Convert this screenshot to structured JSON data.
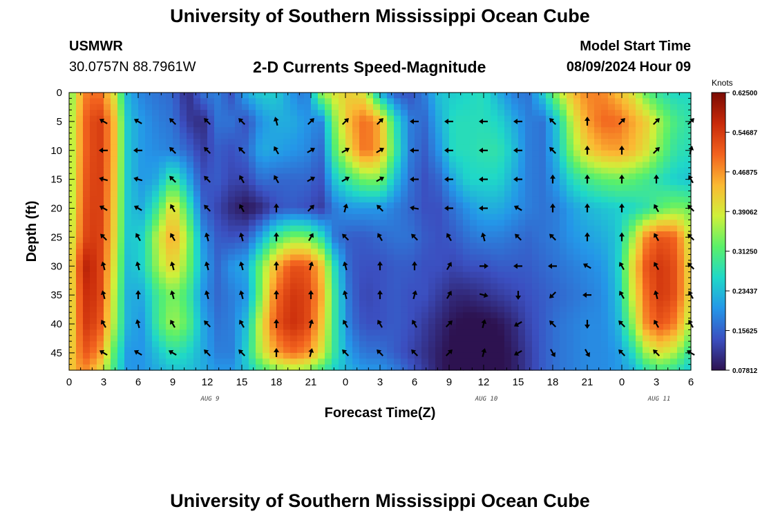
{
  "header": {
    "title": "University of Southern Mississippi Ocean Cube",
    "station": "USMWR",
    "coords": "30.0757N  88.7961W",
    "subtitle": "2-D Currents Speed-Magnitude",
    "model_start_label": "Model Start Time",
    "model_start_value": "08/09/2024 Hour 09"
  },
  "footer": {
    "title": "University of Southern Mississippi Ocean Cube"
  },
  "colors": {
    "scale": [
      "#2d1250",
      "#3b4fc0",
      "#2496e8",
      "#1fd8c8",
      "#5af06a",
      "#cff03a",
      "#fbb933",
      "#f2621e",
      "#c82a0a",
      "#7a0b03"
    ]
  },
  "chart_data": {
    "type": "heatmap",
    "title": "2-D Currents Speed-Magnitude",
    "xlabel": "Forecast Time(Z)",
    "ylabel": "Depth (ft)",
    "x_hours": [
      0,
      3,
      6,
      9,
      12,
      15,
      18,
      21,
      24,
      27,
      30,
      33,
      36,
      39,
      42,
      45,
      48,
      51,
      54
    ],
    "x_tick_labels": [
      "0",
      "3",
      "6",
      "9",
      "12",
      "15",
      "18",
      "21",
      "0",
      "3",
      "6",
      "9",
      "12",
      "15",
      "18",
      "21",
      "0",
      "3",
      "6"
    ],
    "y_ticks": [
      0,
      5,
      10,
      15,
      20,
      25,
      30,
      35,
      40,
      45
    ],
    "y_tick_labels": [
      "0",
      "5",
      "10",
      "15",
      "20",
      "25",
      "30",
      "35",
      "40",
      "45"
    ],
    "xlim": [
      0,
      54
    ],
    "ylim": [
      0,
      48
    ],
    "day_labels": [
      {
        "hour": 12,
        "text": "AUG 9"
      },
      {
        "hour": 36,
        "text": "AUG 10"
      },
      {
        "hour": 51,
        "text": "AUG 11"
      }
    ],
    "colorbar": {
      "title": "Knots",
      "range": [
        0.078125,
        0.625
      ],
      "tick_values": [
        0.625,
        0.546875,
        0.46875,
        0.390625,
        0.3125,
        0.234375,
        0.15625,
        0.078125
      ],
      "tick_labels": [
        "0.62500",
        "0.54687",
        "0.46875",
        "0.39062",
        "0.31250",
        "0.23437",
        "0.15625",
        "0.07812"
      ]
    },
    "speed_depths": [
      0,
      5,
      10,
      15,
      20,
      25,
      30,
      35,
      40,
      45,
      48
    ],
    "speed_grid": [
      [
        0.32,
        0.48,
        0.5,
        0.4,
        0.22,
        0.18,
        0.17,
        0.16,
        0.1,
        0.17,
        0.18,
        0.14,
        0.22,
        0.25,
        0.25,
        0.2,
        0.17,
        0.35,
        0.4,
        0.42,
        0.39,
        0.22,
        0.15,
        0.14,
        0.18,
        0.24,
        0.25,
        0.26,
        0.27,
        0.22,
        0.18,
        0.17,
        0.25,
        0.36,
        0.44,
        0.48,
        0.48,
        0.44,
        0.4,
        0.32,
        0.28,
        0.26,
        0.26
      ],
      [
        0.34,
        0.5,
        0.55,
        0.45,
        0.24,
        0.2,
        0.18,
        0.17,
        0.12,
        0.1,
        0.17,
        0.17,
        0.14,
        0.2,
        0.22,
        0.22,
        0.2,
        0.18,
        0.35,
        0.45,
        0.5,
        0.45,
        0.28,
        0.18,
        0.16,
        0.22,
        0.27,
        0.27,
        0.27,
        0.26,
        0.22,
        0.18,
        0.17,
        0.25,
        0.38,
        0.46,
        0.5,
        0.5,
        0.46,
        0.42,
        0.35,
        0.3,
        0.28
      ],
      [
        0.34,
        0.5,
        0.55,
        0.45,
        0.24,
        0.2,
        0.19,
        0.18,
        0.16,
        0.12,
        0.15,
        0.14,
        0.16,
        0.22,
        0.21,
        0.2,
        0.19,
        0.16,
        0.32,
        0.42,
        0.5,
        0.45,
        0.3,
        0.18,
        0.15,
        0.2,
        0.27,
        0.27,
        0.28,
        0.28,
        0.24,
        0.18,
        0.17,
        0.24,
        0.35,
        0.42,
        0.45,
        0.46,
        0.44,
        0.4,
        0.33,
        0.28,
        0.27
      ],
      [
        0.34,
        0.51,
        0.55,
        0.44,
        0.24,
        0.2,
        0.22,
        0.3,
        0.22,
        0.14,
        0.15,
        0.13,
        0.13,
        0.17,
        0.16,
        0.16,
        0.16,
        0.14,
        0.25,
        0.3,
        0.34,
        0.34,
        0.24,
        0.17,
        0.14,
        0.16,
        0.22,
        0.26,
        0.26,
        0.26,
        0.22,
        0.18,
        0.17,
        0.21,
        0.27,
        0.3,
        0.32,
        0.33,
        0.32,
        0.3,
        0.27,
        0.25,
        0.24
      ],
      [
        0.34,
        0.52,
        0.55,
        0.43,
        0.24,
        0.22,
        0.3,
        0.42,
        0.3,
        0.16,
        0.13,
        0.1,
        0.08,
        0.1,
        0.14,
        0.15,
        0.14,
        0.12,
        0.18,
        0.2,
        0.2,
        0.2,
        0.18,
        0.16,
        0.14,
        0.14,
        0.17,
        0.2,
        0.22,
        0.22,
        0.2,
        0.18,
        0.17,
        0.18,
        0.21,
        0.23,
        0.24,
        0.25,
        0.26,
        0.28,
        0.32,
        0.34,
        0.33
      ],
      [
        0.36,
        0.53,
        0.55,
        0.42,
        0.24,
        0.26,
        0.38,
        0.46,
        0.36,
        0.2,
        0.15,
        0.14,
        0.15,
        0.22,
        0.3,
        0.34,
        0.34,
        0.28,
        0.17,
        0.15,
        0.15,
        0.16,
        0.17,
        0.17,
        0.15,
        0.14,
        0.15,
        0.17,
        0.18,
        0.18,
        0.17,
        0.16,
        0.17,
        0.18,
        0.2,
        0.21,
        0.22,
        0.24,
        0.35,
        0.48,
        0.52,
        0.5,
        0.38
      ],
      [
        0.38,
        0.58,
        0.55,
        0.4,
        0.23,
        0.26,
        0.36,
        0.42,
        0.34,
        0.22,
        0.16,
        0.2,
        0.22,
        0.34,
        0.45,
        0.52,
        0.52,
        0.44,
        0.26,
        0.15,
        0.14,
        0.14,
        0.15,
        0.15,
        0.14,
        0.14,
        0.13,
        0.14,
        0.14,
        0.15,
        0.15,
        0.15,
        0.16,
        0.17,
        0.18,
        0.19,
        0.2,
        0.24,
        0.4,
        0.52,
        0.55,
        0.52,
        0.4
      ],
      [
        0.38,
        0.56,
        0.55,
        0.38,
        0.22,
        0.22,
        0.3,
        0.34,
        0.3,
        0.2,
        0.16,
        0.18,
        0.2,
        0.35,
        0.5,
        0.55,
        0.54,
        0.46,
        0.28,
        0.16,
        0.13,
        0.14,
        0.15,
        0.14,
        0.14,
        0.12,
        0.1,
        0.1,
        0.11,
        0.12,
        0.13,
        0.14,
        0.15,
        0.16,
        0.17,
        0.18,
        0.19,
        0.23,
        0.38,
        0.5,
        0.55,
        0.52,
        0.4
      ],
      [
        0.38,
        0.55,
        0.53,
        0.37,
        0.22,
        0.2,
        0.3,
        0.36,
        0.32,
        0.22,
        0.17,
        0.18,
        0.24,
        0.4,
        0.52,
        0.56,
        0.54,
        0.44,
        0.28,
        0.17,
        0.14,
        0.14,
        0.15,
        0.14,
        0.12,
        0.1,
        0.08,
        0.07,
        0.07,
        0.08,
        0.1,
        0.13,
        0.15,
        0.17,
        0.18,
        0.19,
        0.19,
        0.22,
        0.34,
        0.48,
        0.52,
        0.48,
        0.36
      ],
      [
        0.4,
        0.52,
        0.48,
        0.32,
        0.2,
        0.2,
        0.24,
        0.28,
        0.26,
        0.22,
        0.18,
        0.18,
        0.26,
        0.38,
        0.46,
        0.5,
        0.48,
        0.4,
        0.28,
        0.2,
        0.17,
        0.17,
        0.15,
        0.13,
        0.11,
        0.09,
        0.07,
        0.06,
        0.06,
        0.07,
        0.09,
        0.12,
        0.15,
        0.17,
        0.18,
        0.19,
        0.19,
        0.2,
        0.26,
        0.36,
        0.4,
        0.36,
        0.28
      ],
      [
        0.42,
        0.48,
        0.42,
        0.3,
        0.2,
        0.2,
        0.22,
        0.24,
        0.24,
        0.22,
        0.2,
        0.2,
        0.24,
        0.3,
        0.34,
        0.36,
        0.35,
        0.3,
        0.25,
        0.22,
        0.2,
        0.2,
        0.18,
        0.15,
        0.12,
        0.09,
        0.07,
        0.06,
        0.06,
        0.07,
        0.09,
        0.12,
        0.15,
        0.17,
        0.18,
        0.19,
        0.19,
        0.2,
        0.22,
        0.28,
        0.3,
        0.28,
        0.24
      ]
    ],
    "vectors": {
      "hours": [
        3,
        6,
        9,
        12,
        15,
        18,
        21,
        24,
        27,
        30,
        33,
        36,
        39,
        42,
        45,
        48,
        51,
        54
      ],
      "depths": [
        5,
        10,
        15,
        20,
        25,
        30,
        35,
        40,
        45
      ],
      "direction_deg": [
        [
          300,
          300,
          315,
          315,
          315,
          345,
          45,
          45,
          45,
          270,
          270,
          270,
          270,
          315,
          0,
          45,
          45,
          45
        ],
        [
          270,
          270,
          315,
          315,
          315,
          330,
          60,
          60,
          60,
          270,
          270,
          270,
          270,
          315,
          0,
          0,
          45,
          15
        ],
        [
          285,
          285,
          315,
          315,
          330,
          330,
          60,
          60,
          60,
          270,
          270,
          270,
          270,
          0,
          0,
          0,
          0,
          330
        ],
        [
          300,
          300,
          330,
          315,
          330,
          0,
          45,
          15,
          315,
          280,
          270,
          270,
          300,
          0,
          0,
          0,
          330,
          315
        ],
        [
          315,
          330,
          330,
          345,
          345,
          0,
          30,
          315,
          330,
          315,
          330,
          345,
          315,
          315,
          0,
          0,
          330,
          315
        ],
        [
          345,
          345,
          345,
          345,
          345,
          0,
          15,
          345,
          0,
          0,
          30,
          90,
          270,
          270,
          300,
          330,
          330,
          315
        ],
        [
          345,
          0,
          345,
          345,
          345,
          0,
          0,
          345,
          0,
          15,
          30,
          105,
          180,
          225,
          270,
          330,
          345,
          330
        ],
        [
          330,
          345,
          330,
          315,
          330,
          0,
          15,
          330,
          330,
          330,
          45,
          15,
          240,
          315,
          180,
          315,
          330,
          330
        ],
        [
          300,
          300,
          300,
          315,
          315,
          0,
          15,
          315,
          315,
          315,
          45,
          15,
          240,
          150,
          150,
          315,
          315,
          300
        ]
      ]
    }
  }
}
